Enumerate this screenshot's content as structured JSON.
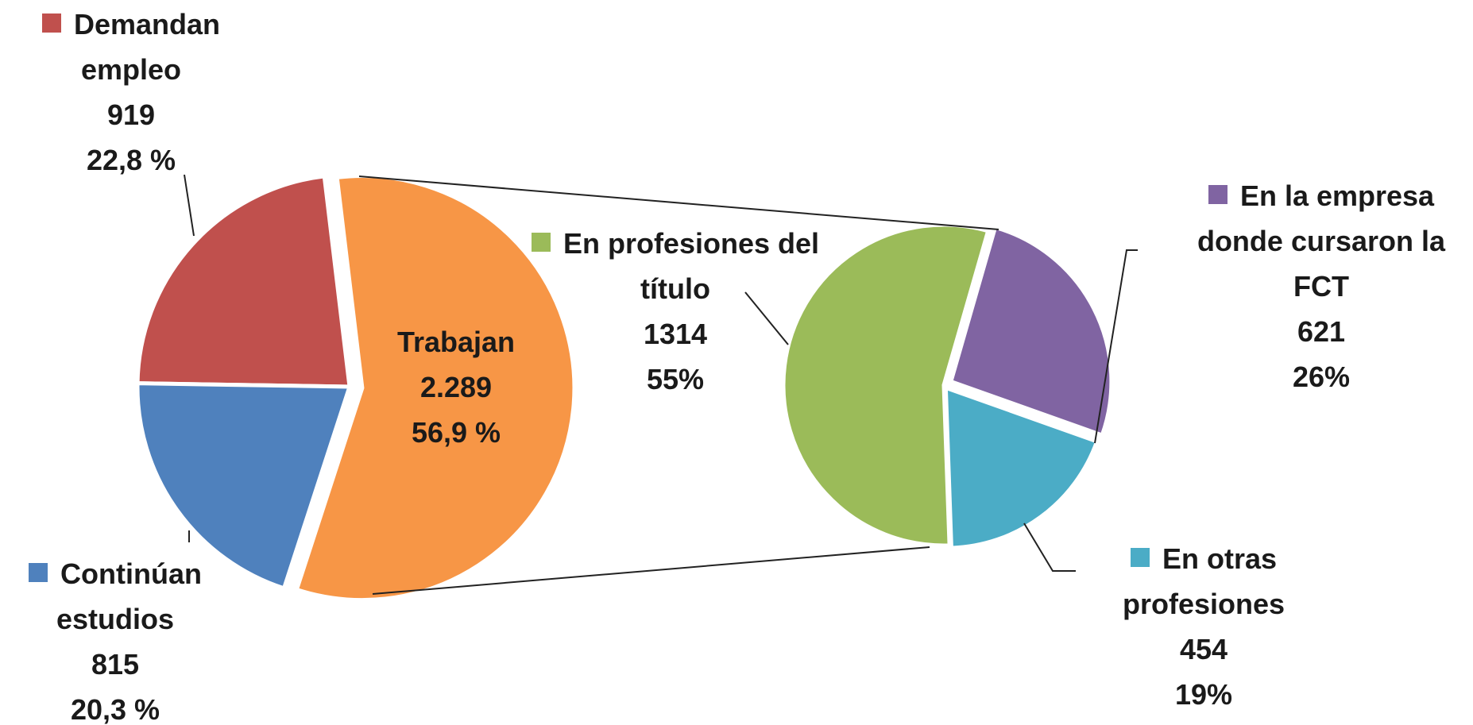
{
  "chart_data": [
    {
      "type": "pie",
      "categories": [
        "Trabajan",
        "Demandan empleo",
        "Continúan estudios"
      ],
      "values": [
        2289,
        919,
        815
      ],
      "value_labels": [
        "2.289",
        "919",
        "815"
      ],
      "percentages": [
        56.9,
        22.8,
        20.3
      ],
      "percentage_labels": [
        "56,9 %",
        "22,8 %",
        "20,3 %"
      ],
      "colors": [
        "#f79646",
        "#c0504d",
        "#4f81bd"
      ]
    },
    {
      "type": "pie",
      "categories": [
        "En profesiones del título",
        "En la empresa donde cursaron la FCT",
        "En otras profesiones"
      ],
      "values": [
        1314,
        621,
        454
      ],
      "percentages": [
        55,
        26,
        19
      ],
      "percentage_labels": [
        "55%",
        "26%",
        "19%"
      ],
      "colors": [
        "#9bbb59",
        "#8064a2",
        "#4bacc6"
      ]
    }
  ]
}
